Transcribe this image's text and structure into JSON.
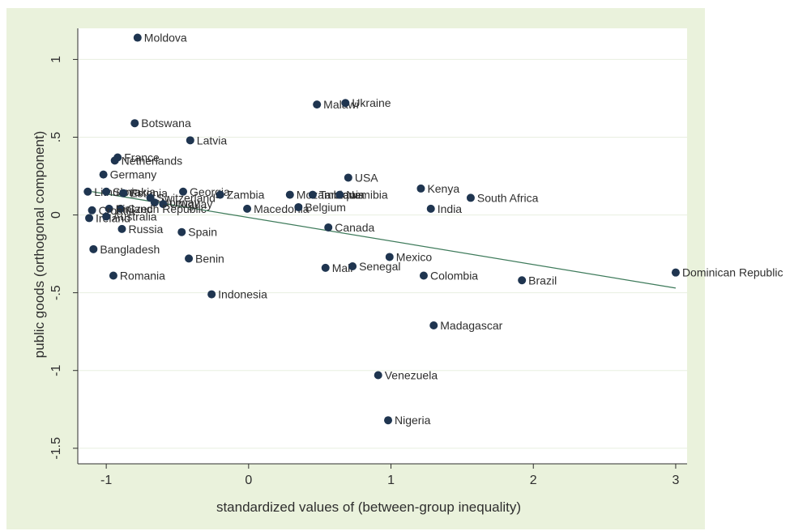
{
  "chart_data": {
    "type": "scatter",
    "title": "",
    "xlabel": "standardized values of (between-group inequality)",
    "ylabel": "public goods (orthogonal component)",
    "xlim": [
      -1.2,
      3.08
    ],
    "ylim": [
      -1.6,
      1.2
    ],
    "xticks": [
      -1,
      0,
      1,
      2,
      3
    ],
    "yticks": [
      -1.5,
      -1,
      -0.5,
      0,
      0.5,
      1
    ],
    "xtick_labels": [
      "-1",
      "0",
      "1",
      "2",
      "3"
    ],
    "ytick_labels": [
      "-1.5",
      "-1",
      "-.5",
      "0",
      ".5",
      "1"
    ],
    "grid": true,
    "colors": {
      "outer_background": "#eaf2dc",
      "plot_background": "#ffffff",
      "grid": "#e8efe0",
      "marker": "#1f3550",
      "fit_line": "#3d7a5a",
      "text": "#2e2e2e"
    },
    "fit_line": {
      "x": [
        -1.1,
        3.0
      ],
      "y": [
        0.15,
        -0.47
      ]
    },
    "points": [
      {
        "label": "Moldova",
        "x": -0.78,
        "y": 1.14
      },
      {
        "label": "Malawi",
        "x": 0.48,
        "y": 0.71
      },
      {
        "label": "Ukraine",
        "x": 0.68,
        "y": 0.72
      },
      {
        "label": "Botswana",
        "x": -0.8,
        "y": 0.59
      },
      {
        "label": "Latvia",
        "x": -0.41,
        "y": 0.48
      },
      {
        "label": "France",
        "x": -0.92,
        "y": 0.37
      },
      {
        "label": "Netherlands",
        "x": -0.94,
        "y": 0.35
      },
      {
        "label": "Germany",
        "x": -1.02,
        "y": 0.26
      },
      {
        "label": "USA",
        "x": 0.7,
        "y": 0.24
      },
      {
        "label": "Kenya",
        "x": 1.21,
        "y": 0.17
      },
      {
        "label": "South Africa",
        "x": 1.56,
        "y": 0.11
      },
      {
        "label": "Lithuania",
        "x": -1.13,
        "y": 0.15
      },
      {
        "label": "Slovakia",
        "x": -1.0,
        "y": 0.15
      },
      {
        "label": "Estonia",
        "x": -0.88,
        "y": 0.14
      },
      {
        "label": "Georgia",
        "x": -0.46,
        "y": 0.15
      },
      {
        "label": "Zambia",
        "x": -0.2,
        "y": 0.13
      },
      {
        "label": "Mozambique",
        "x": 0.29,
        "y": 0.13
      },
      {
        "label": "Tanzania",
        "x": 0.45,
        "y": 0.13
      },
      {
        "label": "Namibia",
        "x": 0.64,
        "y": 0.13
      },
      {
        "label": "Switzerland",
        "x": -0.69,
        "y": 0.11
      },
      {
        "label": "Norway",
        "x": -0.66,
        "y": 0.08
      },
      {
        "label": "Uruguay",
        "x": -0.6,
        "y": 0.07
      },
      {
        "label": "Czech Republic",
        "x": -0.9,
        "y": 0.04
      },
      {
        "label": "Finland",
        "x": -0.98,
        "y": 0.04
      },
      {
        "label": "Croatia",
        "x": -1.1,
        "y": 0.03
      },
      {
        "label": "Ireland",
        "x": -1.12,
        "y": -0.02
      },
      {
        "label": "Australia",
        "x": -1.0,
        "y": -0.01
      },
      {
        "label": "Macedonia",
        "x": -0.01,
        "y": 0.04
      },
      {
        "label": "Belgium",
        "x": 0.35,
        "y": 0.05
      },
      {
        "label": "India",
        "x": 1.28,
        "y": 0.04
      },
      {
        "label": "Russia",
        "x": -0.89,
        "y": -0.09
      },
      {
        "label": "Spain",
        "x": -0.47,
        "y": -0.11
      },
      {
        "label": "Canada",
        "x": 0.56,
        "y": -0.08
      },
      {
        "label": "Bangladesh",
        "x": -1.09,
        "y": -0.22
      },
      {
        "label": "Benin",
        "x": -0.42,
        "y": -0.28
      },
      {
        "label": "Mexico",
        "x": 0.99,
        "y": -0.27
      },
      {
        "label": "Mali",
        "x": 0.54,
        "y": -0.34
      },
      {
        "label": "Senegal",
        "x": 0.73,
        "y": -0.33
      },
      {
        "label": "Romania",
        "x": -0.95,
        "y": -0.39
      },
      {
        "label": "Colombia",
        "x": 1.23,
        "y": -0.39
      },
      {
        "label": "Brazil",
        "x": 1.92,
        "y": -0.42
      },
      {
        "label": "Dominican Republic",
        "x": 3.0,
        "y": -0.37
      },
      {
        "label": "Indonesia",
        "x": -0.26,
        "y": -0.51
      },
      {
        "label": "Madagascar",
        "x": 1.3,
        "y": -0.71
      },
      {
        "label": "Venezuela",
        "x": 0.91,
        "y": -1.03
      },
      {
        "label": "Nigeria",
        "x": 0.98,
        "y": -1.32
      }
    ]
  }
}
